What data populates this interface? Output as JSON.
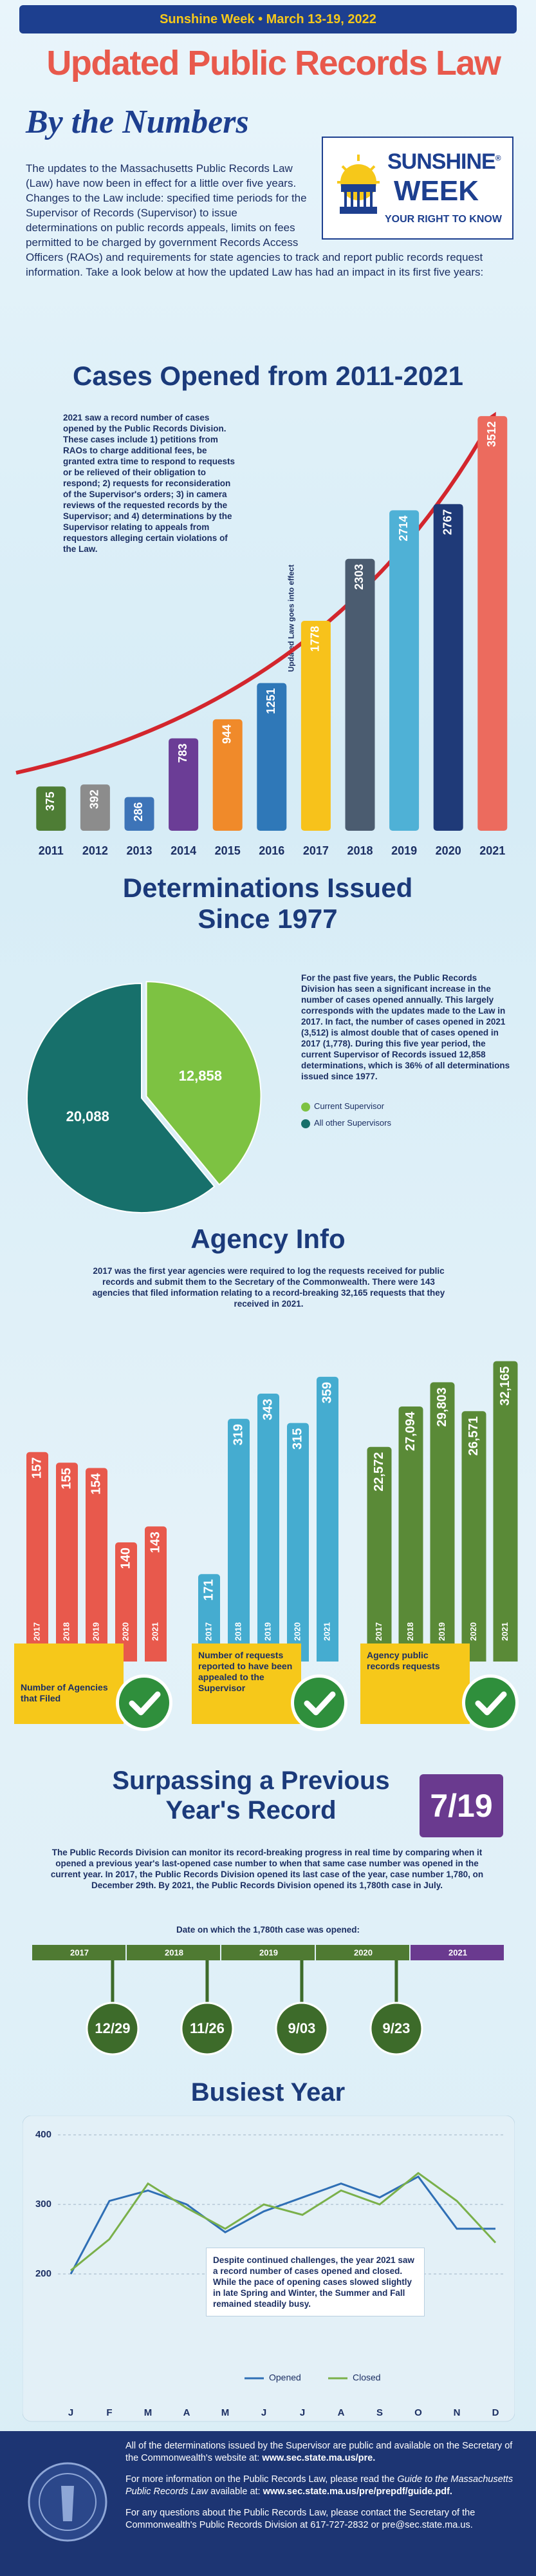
{
  "banner": "Sunshine Week • March 13-19, 2022",
  "title": "Updated Public Records Law",
  "subtitle": "By the Numbers",
  "logo": {
    "name": "SUNSHINE",
    "mark": "®",
    "name2": "WEEK",
    "tagline": "YOUR RIGHT TO KNOW"
  },
  "intro": "The updates to the Massachusetts Public Records Law (Law) have now been in effect for a little over five years. Changes to the Law include: specified time periods for the Supervisor of Records (Supervisor) to issue determinations on public records appeals, limits on fees permitted to be charged by government Records Access Officers (RAOs) and requirements for state agencies to track and report public records request information. Take a look below at how the updated Law has had an impact in its first five years:",
  "agency_info": {
    "title": "Agency Info",
    "text": "2017 was the first year agencies were required to log the requests received for public records and submit them to the Secretary of the Commonwealth. There were 143 agencies that filed information relating to a record-breaking 32,165 requests that they received in 2021."
  },
  "record": {
    "title": "Surpassing a Previous Year's Record",
    "highlight": "7/19",
    "text": "The Public Records Division can monitor its record-breaking progress in real time by comparing when it opened a previous year's last-opened case number to when that same case number was opened in the current year. In 2017, the Public Records Division opened its last case of the year, case number 1,780, on December 29th. By 2021, the Public Records Division opened its 1,780th case in July.",
    "timeline_caption": "Date on which the 1,780th case was opened:",
    "years": [
      "2017",
      "2018",
      "2019",
      "2020",
      "2021"
    ],
    "dates": [
      "12/29",
      "11/26",
      "9/03",
      "9/23"
    ]
  },
  "chart_data": [
    {
      "type": "bar",
      "title": "Cases Opened from 2011-2021",
      "note": "2021 saw a record number of cases opened by the Public Records Division. These cases include 1) petitions from RAOs to charge additional fees, be granted extra time to respond to requests or be relieved of their obligation to respond; 2) requests for reconsideration of the Supervisor's orders; 3) in camera reviews of the requested records by the Supervisor; and 4) determinations by the Supervisor relating to appeals from requestors alleging certain violations of the Law.",
      "annotation": "Updated Law goes into effect",
      "categories": [
        "2011",
        "2012",
        "2013",
        "2014",
        "2015",
        "2016",
        "2017",
        "2018",
        "2019",
        "2020",
        "2021"
      ],
      "values": [
        375,
        392,
        286,
        783,
        944,
        1251,
        1778,
        2303,
        2714,
        2767,
        3512
      ],
      "colors": [
        "#4e7d35",
        "#8c8c8c",
        "#3d74b8",
        "#6b3d96",
        "#f08a2a",
        "#2f78b8",
        "#f7c21b",
        "#4b5c70",
        "#4fb1d6",
        "#1f3a78",
        "#ec6b5e"
      ],
      "ylim": [
        0,
        3600
      ]
    },
    {
      "type": "pie",
      "title": "Determinations Issued Since 1977",
      "text": "For the past five years, the Public Records Division has seen a significant increase in the number of cases opened annually. This largely corresponds with the updates made to the Law in 2017. In fact, the number of cases opened in 2021 (3,512) is almost double that of cases opened in 2017 (1,778). During this five year period, the current Supervisor of Records issued 12,858 determinations, which is 36% of all determinations issued since 1977.",
      "categories": [
        "Current Supervisor",
        "All other Supervisors"
      ],
      "values": [
        12858,
        20088
      ],
      "value_labels": [
        "12,858",
        "20,088"
      ],
      "colors": [
        "#7dc242",
        "#17706b"
      ]
    },
    {
      "type": "bar",
      "label": "Number of Agencies that Filed",
      "categories": [
        "2017",
        "2018",
        "2019",
        "2020",
        "2021"
      ],
      "values": [
        157,
        155,
        154,
        140,
        143
      ],
      "color": "#e8594c",
      "ylim": [
        120,
        160
      ]
    },
    {
      "type": "bar",
      "label": "Number of requests reported to have been appealed to the Supervisor",
      "categories": [
        "2017",
        "2018",
        "2019",
        "2020",
        "2021"
      ],
      "values": [
        171,
        319,
        343,
        315,
        359
      ],
      "color": "#45acd0",
      "ylim": [
        100,
        370
      ]
    },
    {
      "type": "bar",
      "label": "Agency public records requests",
      "categories": [
        "2017",
        "2018",
        "2019",
        "2020",
        "2021"
      ],
      "values": [
        22572,
        27094,
        29803,
        26571,
        32165
      ],
      "value_labels": [
        "22,572",
        "27,094",
        "29,803",
        "26,571",
        "32,165"
      ],
      "color": "#5a8a37",
      "ylim": [
        0,
        33000
      ]
    },
    {
      "type": "line",
      "title": "Busiest Year",
      "note": "Despite continued challenges, the year 2021 saw a record number of cases opened and closed. While the pace of opening cases slowed slightly in late Spring and Winter, the Summer and Fall remained steadily busy.",
      "categories": [
        "J",
        "F",
        "M",
        "A",
        "M",
        "J",
        "J",
        "A",
        "S",
        "O",
        "N",
        "D"
      ],
      "series": [
        {
          "name": "Opened",
          "color": "#2f6fb5",
          "values": [
            200,
            305,
            320,
            300,
            260,
            290,
            310,
            330,
            310,
            340,
            265,
            265
          ]
        },
        {
          "name": "Closed",
          "color": "#7ab04a",
          "values": [
            205,
            250,
            330,
            295,
            265,
            300,
            285,
            320,
            300,
            345,
            305,
            245
          ]
        }
      ],
      "ylim": [
        150,
        400
      ],
      "yticks": [
        200,
        300,
        400
      ],
      "grid": true
    }
  ],
  "footer": {
    "p1": "All of the determinations issued by the Supervisor are public and available on the Secretary of the Commonwealth's website at: ",
    "p1_link": "www.sec.state.ma.us/pre.",
    "p2": "For more information on the Public Records Law, please read the ",
    "p2_title": "Guide to the Massachusetts Public Records Law",
    "p2_tail": " available at: ",
    "p2_link": "www.sec.state.ma.us/pre/prepdf/guide.pdf.",
    "p3": "For any questions about the Public Records Law, please contact the Secretary of the Commonwealth's Public Records Division at 617-727-2832 or pre@sec.state.ma.us."
  }
}
